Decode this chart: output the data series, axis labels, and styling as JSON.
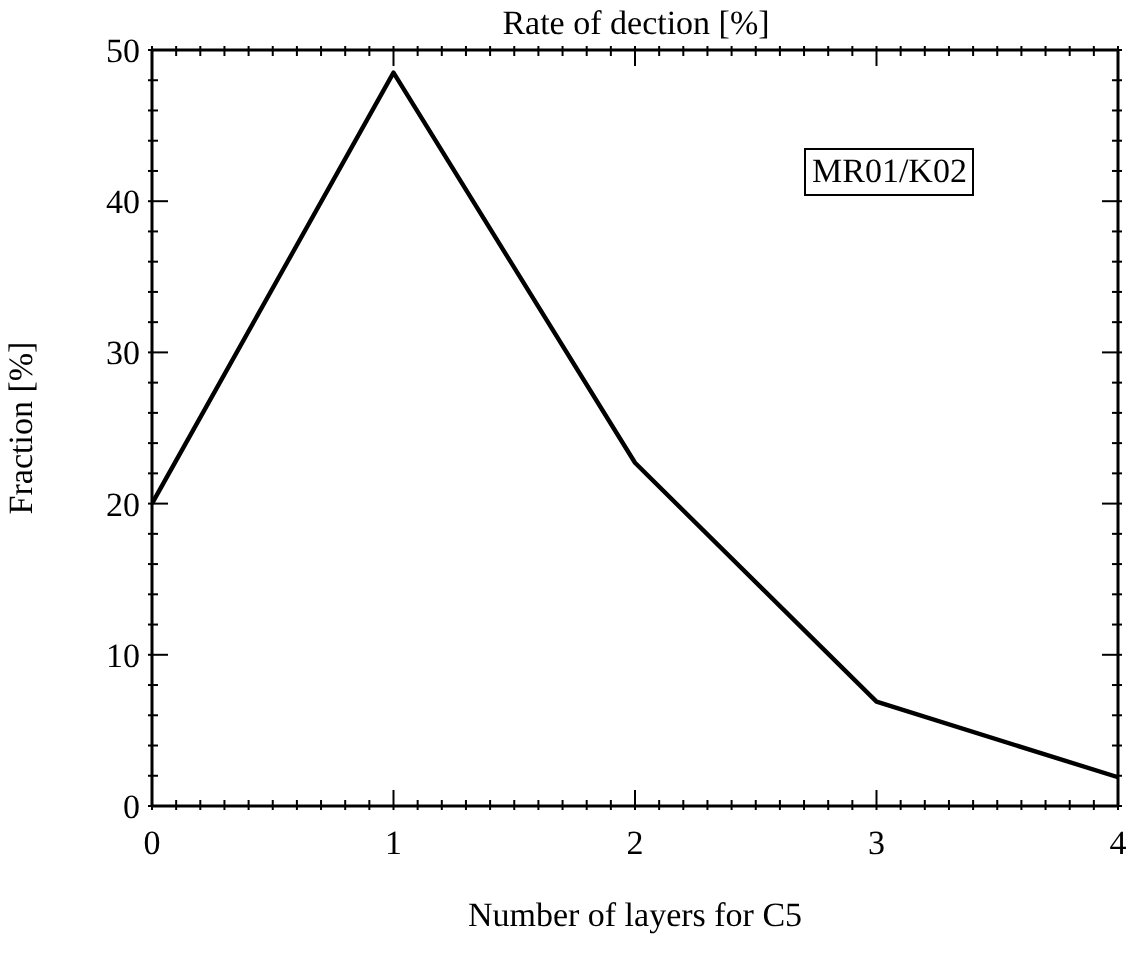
{
  "chart_data": {
    "type": "line",
    "title": "Rate of dection [%]",
    "xlabel": "Number of layers for C5",
    "ylabel": "Fraction [%]",
    "annotations": [
      "MR01/K02"
    ],
    "x": [
      0,
      1,
      2,
      3,
      4
    ],
    "series": [
      {
        "color": "#000000",
        "values": [
          20,
          48.5,
          22.7,
          6.9,
          1.9
        ]
      }
    ],
    "xlim": [
      0,
      4
    ],
    "xticks": [
      0,
      {
        "value": 0.1,
        "label": null
      },
      {
        "value": 0.2,
        "label": null
      },
      {
        "value": 0.3,
        "label": null
      },
      {
        "value": 0.4,
        "label": null
      },
      {
        "value": 0.5,
        "label": null
      },
      {
        "value": 0.6,
        "label": null
      },
      {
        "value": 0.7,
        "label": null
      },
      {
        "value": 0.8,
        "label": null
      },
      {
        "value": 0.9,
        "label": null
      },
      1,
      {
        "value": 1.1,
        "label": null
      },
      {
        "value": 1.2,
        "label": null
      },
      {
        "value": 1.3,
        "label": null
      },
      {
        "value": 1.4,
        "label": null
      },
      {
        "value": 1.5,
        "label": null
      },
      {
        "value": 1.6,
        "label": null
      },
      {
        "value": 1.7,
        "label": null
      },
      {
        "value": 1.8,
        "label": null
      },
      {
        "value": 1.9,
        "label": null
      },
      2,
      {
        "value": 2.1,
        "label": null
      },
      {
        "value": 2.2,
        "label": null
      },
      {
        "value": 2.3,
        "label": null
      },
      {
        "value": 2.4,
        "label": null
      },
      {
        "value": 2.5,
        "label": null
      },
      {
        "value": 2.6,
        "label": null
      },
      {
        "value": 2.7,
        "label": null
      },
      {
        "value": 2.8,
        "label": null
      },
      {
        "value": 2.9,
        "label": null
      },
      3,
      {
        "value": 3.1,
        "label": null
      },
      {
        "value": 3.2,
        "label": null
      },
      {
        "value": 3.3,
        "label": null
      },
      {
        "value": 3.4,
        "label": null
      },
      {
        "value": 3.5,
        "label": null
      },
      {
        "value": 3.6,
        "label": null
      },
      {
        "value": 3.7,
        "label": null
      },
      {
        "value": 3.8,
        "label": null
      },
      {
        "value": 3.9,
        "label": null
      },
      4
    ],
    "ylim": [
      0,
      50
    ],
    "yticks": [
      0,
      {
        "value": 2,
        "label": null
      },
      {
        "value": 4,
        "label": null
      },
      {
        "value": 6,
        "label": null
      },
      {
        "value": 8,
        "label": null
      },
      10,
      {
        "value": 12,
        "label": null
      },
      {
        "value": 14,
        "label": null
      },
      {
        "value": 16,
        "label": null
      },
      {
        "value": 18,
        "label": null
      },
      20,
      {
        "value": 22,
        "label": null
      },
      {
        "value": 24,
        "label": null
      },
      {
        "value": 26,
        "label": null
      },
      {
        "value": 28,
        "label": null
      },
      30,
      {
        "value": 32,
        "label": null
      },
      {
        "value": 34,
        "label": null
      },
      {
        "value": 36,
        "label": null
      },
      {
        "value": 38,
        "label": null
      },
      40,
      {
        "value": 42,
        "label": null
      },
      {
        "value": 44,
        "label": null
      },
      {
        "value": 46,
        "label": null
      },
      {
        "value": 48,
        "label": null
      },
      50
    ],
    "marker": "none",
    "line_style": "solid"
  }
}
